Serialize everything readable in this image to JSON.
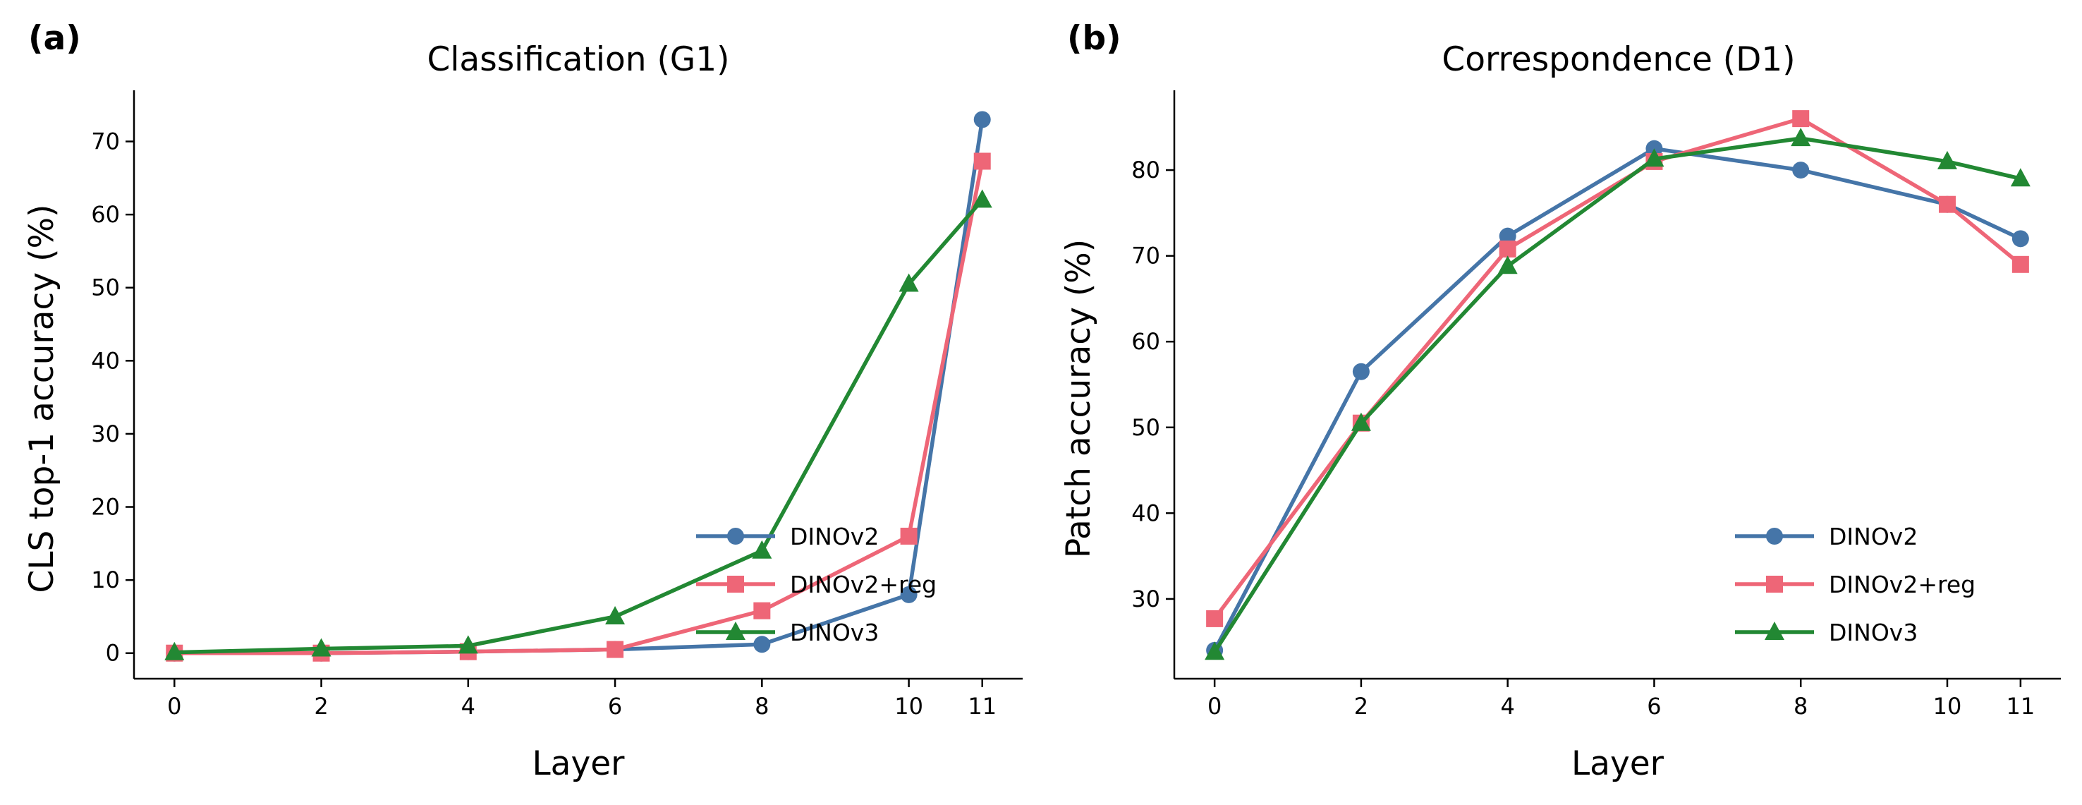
{
  "colors": {
    "DINOv2": "#4575a8",
    "DINOv2+reg": "#ee6677",
    "DINOv3": "#228833"
  },
  "chart_data": [
    {
      "type": "line",
      "panel_label": "(a)",
      "title": "Classification (G1)",
      "xlabel": "Layer",
      "ylabel": "CLS top-1 accuracy (%)",
      "x": [
        0,
        2,
        4,
        6,
        8,
        10,
        11
      ],
      "xticks": [
        "0",
        "2",
        "4",
        "6",
        "8",
        "10",
        "11"
      ],
      "yticks": [
        "0",
        "10",
        "20",
        "30",
        "40",
        "50",
        "60",
        "70"
      ],
      "ylim": [
        -3.5,
        77
      ],
      "xlim": [
        -0.55,
        11.55
      ],
      "legend": "lower-right",
      "grid": false,
      "series": [
        {
          "name": "DINOv2",
          "marker": "circle",
          "values": [
            0,
            0,
            0.2,
            0.5,
            1.2,
            8,
            73
          ]
        },
        {
          "name": "DINOv2+reg",
          "marker": "square",
          "values": [
            0,
            0,
            0.2,
            0.5,
            5.8,
            16,
            67.3
          ]
        },
        {
          "name": "DINOv3",
          "marker": "triangle",
          "values": [
            0.1,
            0.6,
            1.0,
            5.0,
            14,
            50.5,
            62
          ]
        }
      ]
    },
    {
      "type": "line",
      "panel_label": "(b)",
      "title": "Correspondence (D1)",
      "xlabel": "Layer",
      "ylabel": "Patch accuracy (%)",
      "x": [
        0,
        2,
        4,
        6,
        8,
        10,
        11
      ],
      "xticks": [
        "0",
        "2",
        "4",
        "6",
        "8",
        "10",
        "11"
      ],
      "yticks": [
        "30",
        "40",
        "50",
        "60",
        "70",
        "80"
      ],
      "ylim": [
        20.7,
        89.3
      ],
      "xlim": [
        -0.55,
        11.55
      ],
      "legend": "lower-right",
      "grid": false,
      "series": [
        {
          "name": "DINOv2",
          "marker": "circle",
          "values": [
            24,
            56.5,
            72.3,
            82.5,
            80,
            76,
            72
          ]
        },
        {
          "name": "DINOv2+reg",
          "marker": "square",
          "values": [
            27.7,
            50.5,
            70.8,
            81,
            86,
            76,
            69
          ]
        },
        {
          "name": "DINOv3",
          "marker": "triangle",
          "values": [
            23.8,
            50.5,
            68.8,
            81.3,
            83.7,
            81,
            79
          ]
        }
      ]
    }
  ]
}
